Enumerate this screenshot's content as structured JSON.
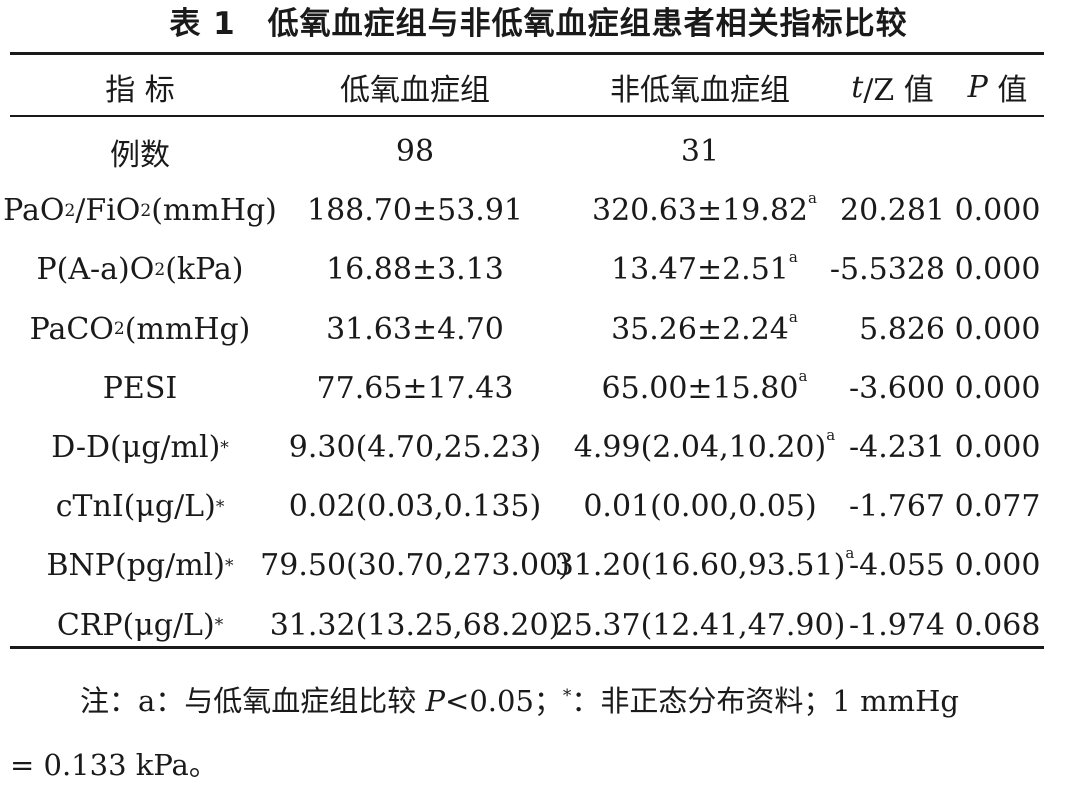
{
  "table": {
    "title": "表 1　低氧血症组与非低氧血症组患者相关指标比较",
    "headers": {
      "indicator": "指 标",
      "hypoxemia": "低氧血症组",
      "non_hypoxemia": "非低氧血症组",
      "tz_italic": "t",
      "tz_rest": "/Z 值",
      "p_italic": "P",
      "p_rest": " 值"
    },
    "rows": [
      {
        "label": "例数",
        "hypoxemia": "98",
        "non_hypoxemia": "31",
        "non_hypoxemia_mark": "",
        "tz": "",
        "p": ""
      },
      {
        "label_parts": [
          "PaO",
          "2",
          "/FiO",
          "2",
          "(mmHg)"
        ],
        "hypoxemia": "188.70±53.91",
        "non_hypoxemia": "320.63±19.82",
        "non_hypoxemia_mark": "a",
        "tz": "20.281",
        "p": "0.000"
      },
      {
        "label_parts": [
          "P(A-a)O",
          "2",
          "(kPa)"
        ],
        "hypoxemia": "16.88±3.13",
        "non_hypoxemia": "13.47±2.51",
        "non_hypoxemia_mark": "a",
        "tz": "-5.5328",
        "p": "0.000"
      },
      {
        "label_parts": [
          "PaCO",
          "2",
          "(mmHg)"
        ],
        "hypoxemia": "31.63±4.70",
        "non_hypoxemia": "35.26±2.24",
        "non_hypoxemia_mark": "a",
        "tz": "5.826",
        "p": "0.000"
      },
      {
        "label": "PESI",
        "hypoxemia": "77.65±17.43",
        "non_hypoxemia": "65.00±15.80",
        "non_hypoxemia_mark": "a",
        "tz": "-3.600",
        "p": "0.000"
      },
      {
        "label": "D-D(μg/ml)",
        "label_mark": "*",
        "hypoxemia": "9.30(4.70,25.23)",
        "non_hypoxemia": "4.99(2.04,10.20)",
        "non_hypoxemia_mark": "a",
        "tz": "-4.231",
        "p": "0.000"
      },
      {
        "label": "cTnI(μg/L)",
        "label_mark": "*",
        "hypoxemia": "0.02(0.03,0.135)",
        "non_hypoxemia": "0.01(0.00,0.05)",
        "non_hypoxemia_mark": "",
        "tz": "-1.767",
        "p": "0.077"
      },
      {
        "label": "BNP(pg/ml)",
        "label_mark": "*",
        "hypoxemia": "79.50(30.70,273.00)",
        "non_hypoxemia": "31.20(16.60,93.51)",
        "non_hypoxemia_mark": "a",
        "tz": "-4.055",
        "p": "0.000"
      },
      {
        "label": "CRP(μg/L)",
        "label_mark": "*",
        "hypoxemia": "31.32(13.25,68.20)",
        "non_hypoxemia": "25.37(12.41,47.90)",
        "non_hypoxemia_mark": "",
        "tz": "-1.974",
        "p": "0.068"
      }
    ],
    "note": {
      "prefix": "注：a：与低氧血症组比较 ",
      "p_symbol": "P",
      "threshold": "<0.05；",
      "star": "*",
      "star_text": "：非正态分布资料；1 mmHg",
      "line2": "= 0.133 kPa。"
    }
  }
}
